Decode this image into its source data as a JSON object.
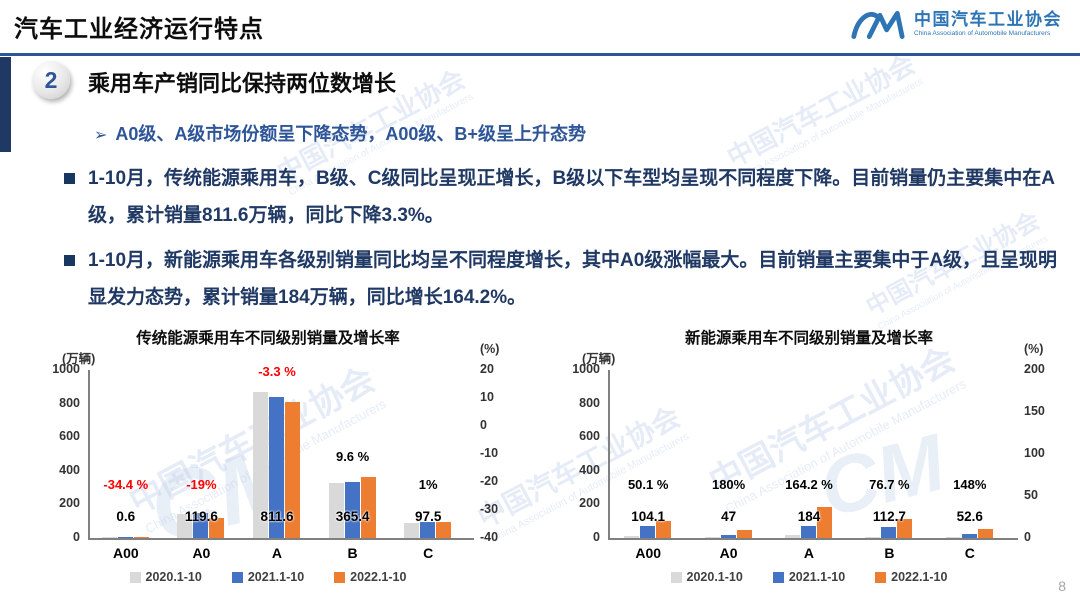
{
  "header": {
    "title": "汽车工业经济运行特点",
    "logo": {
      "org_cn": "中国汽车工业协会",
      "org_en": "China Association of Automobile Manufacturers",
      "mark": "CM"
    }
  },
  "section": {
    "number": "2",
    "title": "乘用车产销同比保持两位数增长"
  },
  "highlight": {
    "arrow": "➢",
    "text": "A0级、A级市场份额呈下降态势，A00级、B+级呈上升态势"
  },
  "bullets": [
    "1-10月，传统能源乘用车，B级、C级同比呈现正增长，B级以下车型均呈现不同程度下降。目前销量仍主要集中在A级，累计销量811.6万辆，同比下降3.3%。",
    "1-10月，新能源乘用车各级别销量同比均呈不同程度增长，其中A0级涨幅最大。目前销量主要集中于A级，且呈现明显发力态势，累计销量184万辆，同比增长164.2%。"
  ],
  "legend": {
    "items": [
      {
        "label": "2020.1-10",
        "color": "#d9d9d9"
      },
      {
        "label": "2021.1-10",
        "color": "#4472c4"
      },
      {
        "label": "2022.1-10",
        "color": "#ed7d31"
      }
    ]
  },
  "chart_data": [
    {
      "type": "bar",
      "title": "传统能源乘用车不同级别销量及增长率",
      "left_axis": {
        "unit": "(万辆)",
        "ticks": [
          "1000",
          "800",
          "600",
          "400",
          "200",
          "0"
        ],
        "max": 1000
      },
      "right_axis": {
        "unit": "(%)",
        "ticks": [
          "20",
          "10",
          "0",
          "-10",
          "-20",
          "-30",
          "-40"
        ]
      },
      "legend_position": "bottom",
      "grid": false,
      "categories": [
        {
          "label": "A00",
          "value_label": "0.6",
          "growth": "-34.4 %",
          "growth_color": "#ff0000"
        },
        {
          "label": "A0",
          "value_label": "119.6",
          "growth": "-19%",
          "growth_color": "#ff0000"
        },
        {
          "label": "A",
          "value_label": "811.6",
          "growth": "-3.3 %",
          "growth_color": "#ff0000"
        },
        {
          "label": "B",
          "value_label": "365.4",
          "growth": "9.6 %",
          "growth_color": "#000000"
        },
        {
          "label": "C",
          "value_label": "97.5",
          "growth": "1%",
          "growth_color": "#000000"
        }
      ],
      "series": [
        {
          "name": "2020.1-10",
          "color": "#d9d9d9",
          "values": [
            1.5,
            143,
            870,
            330,
            88
          ]
        },
        {
          "name": "2021.1-10",
          "color": "#4472c4",
          "values": [
            0.9,
            148,
            839,
            333,
            96.5
          ]
        },
        {
          "name": "2022.1-10",
          "color": "#ed7d31",
          "values": [
            0.6,
            119.6,
            811.6,
            365.4,
            97.5
          ]
        }
      ]
    },
    {
      "type": "bar",
      "title": "新能源乘用车不同级别销量及增长率",
      "left_axis": {
        "unit": "(万辆)",
        "ticks": [
          "1000",
          "800",
          "600",
          "400",
          "200",
          "0"
        ],
        "max": 1000
      },
      "right_axis": {
        "unit": "(%)",
        "ticks": [
          "200",
          "150",
          "100",
          "50",
          "0"
        ]
      },
      "legend_position": "bottom",
      "grid": false,
      "categories": [
        {
          "label": "A00",
          "value_label": "104.1",
          "growth": "50.1 %",
          "growth_color": "#000000"
        },
        {
          "label": "A0",
          "value_label": "47",
          "growth": "180%",
          "growth_color": "#000000"
        },
        {
          "label": "A",
          "value_label": "184",
          "growth": "164.2 %",
          "growth_color": "#000000"
        },
        {
          "label": "B",
          "value_label": "112.7",
          "growth": "76.7 %",
          "growth_color": "#000000"
        },
        {
          "label": "C",
          "value_label": "52.6",
          "growth": "148%",
          "growth_color": "#000000"
        }
      ],
      "series": [
        {
          "name": "2020.1-10",
          "color": "#d9d9d9",
          "values": [
            13,
            5,
            15,
            7,
            2
          ]
        },
        {
          "name": "2021.1-10",
          "color": "#4472c4",
          "values": [
            69,
            17,
            70,
            64,
            21
          ]
        },
        {
          "name": "2022.1-10",
          "color": "#ed7d31",
          "values": [
            104.1,
            47,
            184,
            112.7,
            52.6
          ]
        }
      ]
    }
  ],
  "watermark": {
    "cn": "中国汽车工业协会",
    "en": "China Association of Automobile Manufacturers",
    "mark": "CM"
  },
  "page_number": "8",
  "colors": {
    "accent_blue": "#2e5597",
    "navy_text": "#1f3864",
    "negative_red": "#ff0000",
    "bar_gray": "#d9d9d9",
    "bar_blue": "#4472c4",
    "bar_orange": "#ed7d31"
  }
}
